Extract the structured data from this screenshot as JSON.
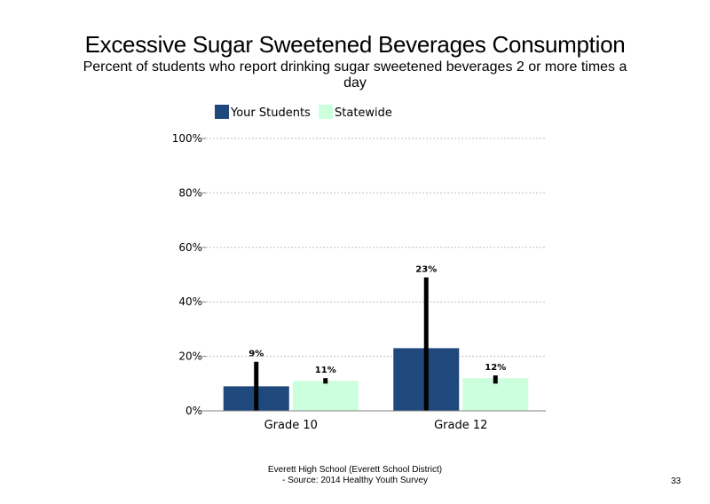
{
  "slide": {
    "title": "Excessive Sugar Sweetened Beverages Consumption",
    "subtitle": "Percent of students who report drinking sugar sweetened beverages 2 or more times a day",
    "footer_line1": "Everett High School (Everett School District)",
    "footer_line2": "- Source: 2014 Healthy Youth Survey",
    "page_number": "33"
  },
  "chart_data": {
    "type": "bar",
    "categories": [
      "Grade 10",
      "Grade 12"
    ],
    "series": [
      {
        "name": "Your Students",
        "color": "#1f497d",
        "values": [
          9,
          23
        ],
        "labels": [
          "9%",
          "23%"
        ],
        "error_low": [
          0,
          0
        ],
        "error_high": [
          18,
          49
        ]
      },
      {
        "name": "Statewide",
        "color": "#ccffdd",
        "values": [
          11,
          12
        ],
        "labels": [
          "11%",
          "12%"
        ],
        "error_low": [
          10,
          10
        ],
        "error_high": [
          12,
          13
        ]
      }
    ],
    "ylim": [
      0,
      100
    ],
    "yticks": [
      "0%",
      "20%",
      "40%",
      "60%",
      "80%",
      "100%"
    ],
    "ytick_values": [
      0,
      20,
      40,
      60,
      80,
      100
    ],
    "grid": true,
    "legend_position": "top-left"
  }
}
